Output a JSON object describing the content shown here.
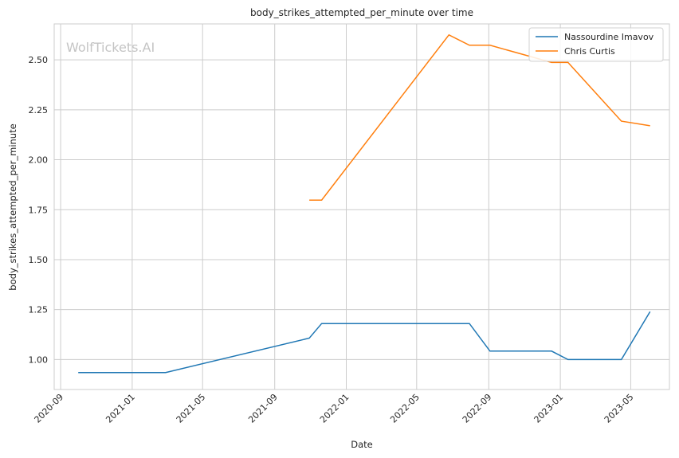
{
  "watermark": "WolfTickets.AI",
  "chart_data": {
    "type": "line",
    "title": "body_strikes_attempted_per_minute over time",
    "xlabel": "Date",
    "ylabel": "body_strikes_attempted_per_minute",
    "x_axis_type": "date",
    "xlim": [
      "2020-08-21",
      "2023-07-06"
    ],
    "ylim": [
      0.85,
      2.68
    ],
    "x_ticks": [
      "2020-09-01",
      "2021-01-01",
      "2021-05-01",
      "2021-09-01",
      "2022-01-01",
      "2022-05-01",
      "2022-09-01",
      "2023-01-01",
      "2023-05-01"
    ],
    "x_tick_labels": [
      "2020-09",
      "2021-01",
      "2021-05",
      "2021-09",
      "2022-01",
      "2022-05",
      "2022-09",
      "2023-01",
      "2023-05"
    ],
    "y_ticks": [
      1.0,
      1.25,
      1.5,
      1.75,
      2.0,
      2.25,
      2.5
    ],
    "y_tick_labels": [
      "1.00",
      "1.25",
      "1.50",
      "1.75",
      "2.00",
      "2.25",
      "2.50"
    ],
    "grid": true,
    "legend_position": "top-right",
    "series": [
      {
        "name": "Nassourdine Imavov",
        "color": "#1f77b4",
        "x": [
          "2020-10-01",
          "2021-02-27",
          "2021-10-30",
          "2021-11-20",
          "2022-07-30",
          "2022-09-03",
          "2022-12-17",
          "2023-01-14",
          "2023-04-15",
          "2023-06-03"
        ],
        "y": [
          0.935,
          0.935,
          1.107,
          1.18,
          1.18,
          1.042,
          1.042,
          1.0,
          1.0,
          1.24
        ]
      },
      {
        "name": "Chris Curtis",
        "color": "#ff7f0e",
        "x": [
          "2021-10-30",
          "2021-11-20",
          "2022-06-25",
          "2022-07-30",
          "2022-09-03",
          "2022-12-17",
          "2023-01-14",
          "2023-04-15",
          "2023-06-03"
        ],
        "y": [
          1.798,
          1.798,
          2.625,
          2.573,
          2.573,
          2.487,
          2.487,
          2.193,
          2.17
        ]
      }
    ]
  }
}
